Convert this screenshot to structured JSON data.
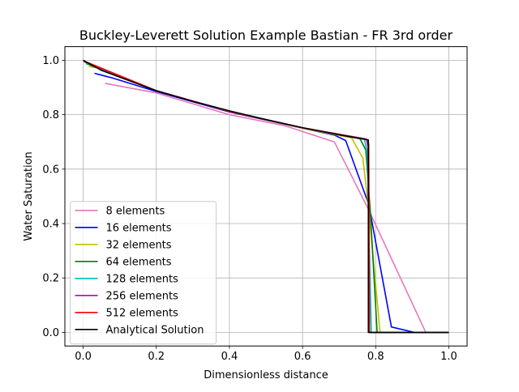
{
  "chart_data": {
    "type": "line",
    "title": "Buckley-Leverett Solution Example Bastian - FR 3rd order",
    "xlabel": "Dimensionless distance",
    "ylabel": "Water Saturation",
    "xlim": [
      -0.05,
      1.05
    ],
    "ylim": [
      -0.05,
      1.05
    ],
    "xticks": [
      0.0,
      0.2,
      0.4,
      0.6,
      0.8,
      1.0
    ],
    "xtick_labels": [
      "0.0",
      "0.2",
      "0.4",
      "0.6",
      "0.8",
      "1.0"
    ],
    "yticks": [
      0.0,
      0.2,
      0.4,
      0.6,
      0.8,
      1.0
    ],
    "ytick_labels": [
      "0.0",
      "0.2",
      "0.4",
      "0.6",
      "0.8",
      "1.0"
    ],
    "grid": true,
    "legend_position": "lower-left",
    "series": [
      {
        "name": "8 elements",
        "color": "#e377c2",
        "points": [
          [
            0.06,
            0.915
          ],
          [
            0.2,
            0.88
          ],
          [
            0.4,
            0.8
          ],
          [
            0.55,
            0.76
          ],
          [
            0.687,
            0.7
          ],
          [
            0.781,
            0.45
          ],
          [
            0.937,
            0.0
          ],
          [
            1.0,
            0.0
          ]
        ]
      },
      {
        "name": "16 elements",
        "color": "#0000ff",
        "points": [
          [
            0.031,
            0.952
          ],
          [
            0.08,
            0.935
          ],
          [
            0.2,
            0.885
          ],
          [
            0.4,
            0.81
          ],
          [
            0.6,
            0.75
          ],
          [
            0.687,
            0.725
          ],
          [
            0.718,
            0.705
          ],
          [
            0.781,
            0.47
          ],
          [
            0.843,
            0.02
          ],
          [
            0.906,
            0.0
          ],
          [
            1.0,
            0.0
          ]
        ]
      },
      {
        "name": "32 elements",
        "color": "#bfbf00",
        "points": [
          [
            0.015,
            0.977
          ],
          [
            0.05,
            0.97
          ],
          [
            0.2,
            0.888
          ],
          [
            0.4,
            0.812
          ],
          [
            0.6,
            0.75
          ],
          [
            0.734,
            0.715
          ],
          [
            0.765,
            0.64
          ],
          [
            0.781,
            0.45
          ],
          [
            0.812,
            0.0
          ],
          [
            1.0,
            0.0
          ]
        ]
      },
      {
        "name": "64 elements",
        "color": "#008000",
        "points": [
          [
            0.008,
            0.988
          ],
          [
            0.2,
            0.888
          ],
          [
            0.4,
            0.812
          ],
          [
            0.6,
            0.752
          ],
          [
            0.757,
            0.712
          ],
          [
            0.773,
            0.67
          ],
          [
            0.785,
            0.45
          ],
          [
            0.804,
            0.0
          ],
          [
            1.0,
            0.0
          ]
        ]
      },
      {
        "name": "128 elements",
        "color": "#00bfbf",
        "points": [
          [
            0.004,
            0.993
          ],
          [
            0.2,
            0.888
          ],
          [
            0.4,
            0.812
          ],
          [
            0.6,
            0.752
          ],
          [
            0.769,
            0.712
          ],
          [
            0.777,
            0.66
          ],
          [
            0.788,
            0.0
          ],
          [
            1.0,
            0.0
          ]
        ]
      },
      {
        "name": "256 elements",
        "color": "#bf00bf",
        "points": [
          [
            0.002,
            0.996
          ],
          [
            0.2,
            0.888
          ],
          [
            0.4,
            0.812
          ],
          [
            0.6,
            0.752
          ],
          [
            0.775,
            0.71
          ],
          [
            0.779,
            0.68
          ],
          [
            0.783,
            0.0
          ],
          [
            1.0,
            0.0
          ]
        ]
      },
      {
        "name": "512 elements",
        "color": "#ff0000",
        "points": [
          [
            0.001,
            0.998
          ],
          [
            0.2,
            0.888
          ],
          [
            0.4,
            0.812
          ],
          [
            0.6,
            0.752
          ],
          [
            0.778,
            0.708
          ],
          [
            0.781,
            0.69
          ],
          [
            0.783,
            0.0
          ],
          [
            1.0,
            0.0
          ]
        ]
      },
      {
        "name": "Analytical Solution",
        "color": "#000000",
        "points": [
          [
            0.0,
            1.0
          ],
          [
            0.05,
            0.963
          ],
          [
            0.1,
            0.938
          ],
          [
            0.2,
            0.888
          ],
          [
            0.3,
            0.849
          ],
          [
            0.4,
            0.814
          ],
          [
            0.5,
            0.782
          ],
          [
            0.6,
            0.752
          ],
          [
            0.7,
            0.726
          ],
          [
            0.78,
            0.707
          ],
          [
            0.78,
            0.0
          ],
          [
            1.0,
            0.0
          ]
        ]
      }
    ]
  }
}
